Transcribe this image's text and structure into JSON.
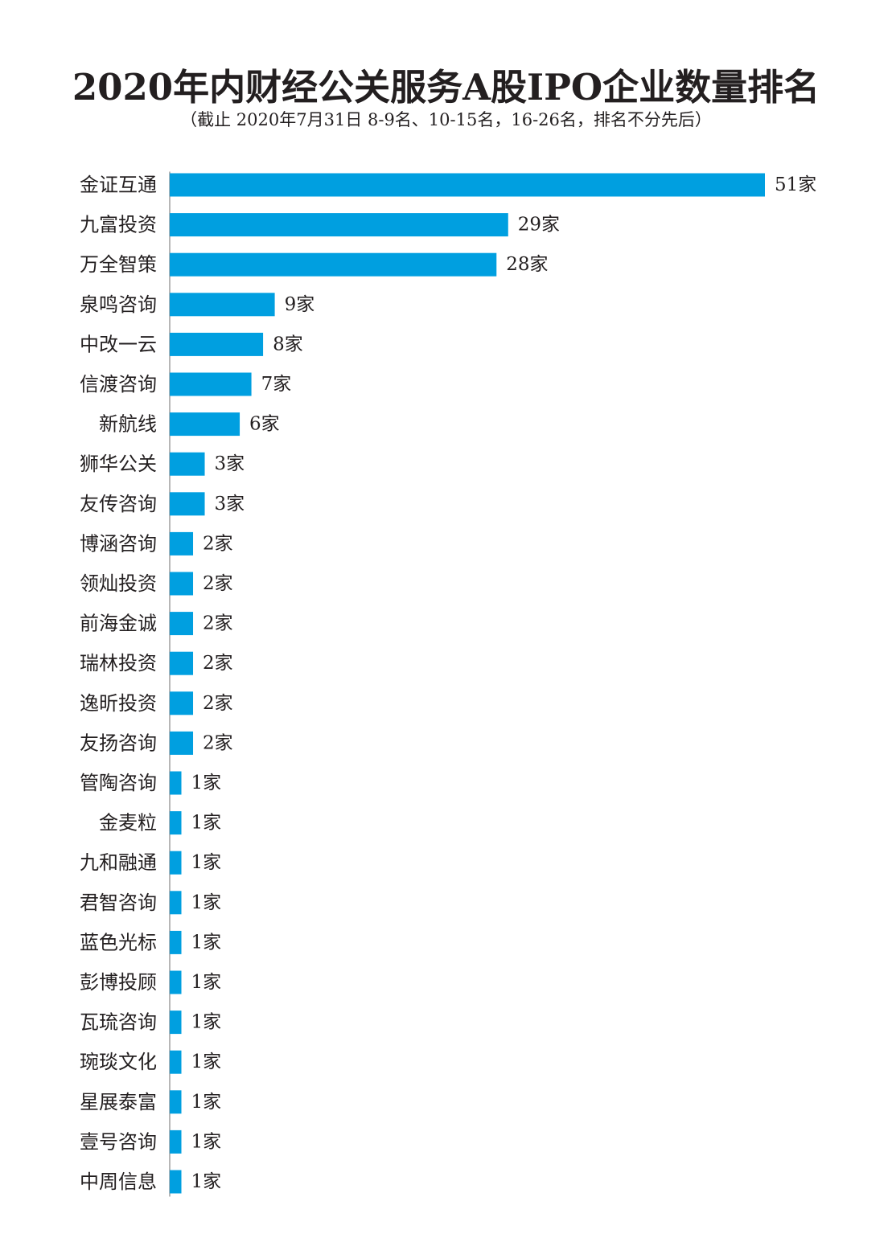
{
  "chart_data": {
    "type": "bar",
    "orientation": "horizontal",
    "title": "2020年内财经公关服务A股IPO企业数量排名",
    "subtitle": "（截止 2020年7月31日 8-9名、10-15名，16-26名，排名不分先后）",
    "categories": [
      "金证互通",
      "九富投资",
      "万全智策",
      "泉鸣咨询",
      "中改一云",
      "信渡咨询",
      "新航线",
      "狮华公关",
      "友传咨询",
      "博涵咨询",
      "领灿投资",
      "前海金诚",
      "瑞林投资",
      "逸昕投资",
      "友扬咨询",
      "管陶咨询",
      "金麦粒",
      "九和融通",
      "君智咨询",
      "蓝色光标",
      "彭博投顾",
      "瓦琉咨询",
      "琬琰文化",
      "星展泰富",
      "壹号咨询",
      "中周信息"
    ],
    "values": [
      51,
      29,
      28,
      9,
      8,
      7,
      6,
      3,
      3,
      2,
      2,
      2,
      2,
      2,
      2,
      1,
      1,
      1,
      1,
      1,
      1,
      1,
      1,
      1,
      1,
      1
    ],
    "value_labels": [
      "51家",
      "29家",
      "28家",
      "9家",
      "8家",
      "7家",
      "6家",
      "3家",
      "3家",
      "2家",
      "2家",
      "2家",
      "2家",
      "2家",
      "2家",
      "1家",
      "1家",
      "1家",
      "1家",
      "1家",
      "1家",
      "1家",
      "1家",
      "1家",
      "1家",
      "1家"
    ],
    "xlim": [
      0,
      51
    ],
    "grid": false,
    "legend": "none",
    "bar_color": "#009fe0",
    "axis_color": "#b7b7b7",
    "text_color": "#231f20"
  }
}
